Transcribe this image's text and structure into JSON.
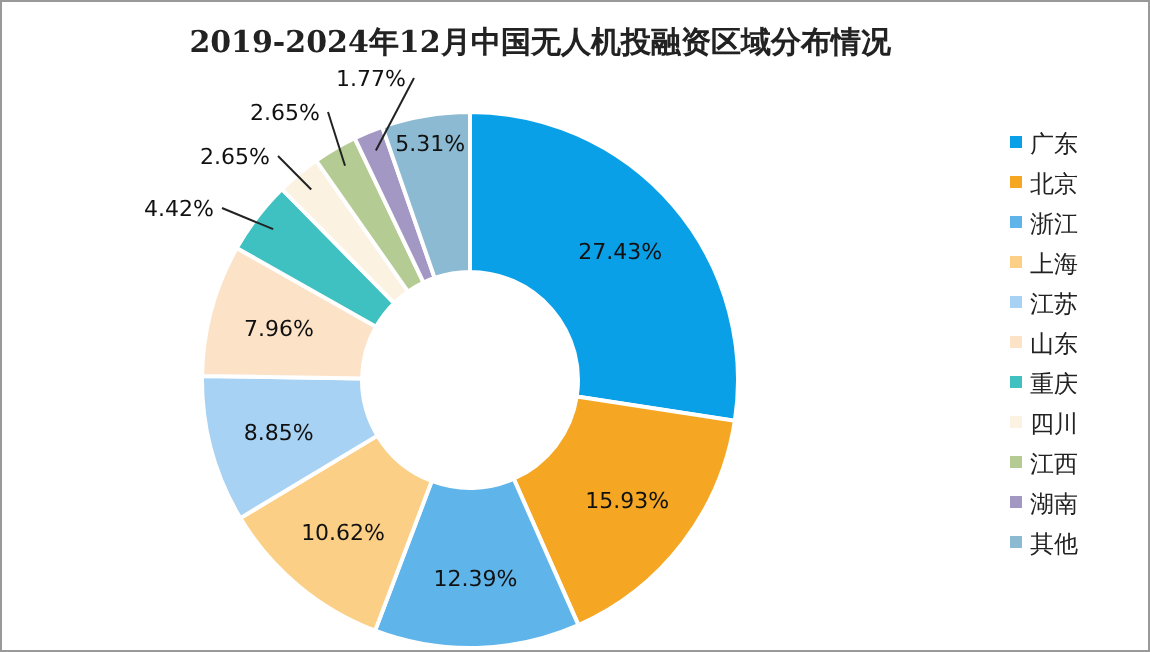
{
  "chart_data": {
    "type": "donut",
    "title": "2019-2024年12月中国无人机投融资区域分布情况",
    "categories": [
      "广东",
      "北京",
      "浙江",
      "上海",
      "江苏",
      "山东",
      "重庆",
      "四川",
      "江西",
      "湖南",
      "其他"
    ],
    "values": [
      27.43,
      15.93,
      12.39,
      10.62,
      8.85,
      7.96,
      4.42,
      2.65,
      2.65,
      1.77,
      5.31
    ],
    "colors": [
      "#0aa0e8",
      "#f5a623",
      "#5fb4ea",
      "#fbcf85",
      "#a8d2f3",
      "#fce3c8",
      "#3ec1c0",
      "#fcf2e2",
      "#b4cc94",
      "#a398c4",
      "#8cbad3"
    ],
    "value_labels": [
      "27.43%",
      "15.93%",
      "12.39%",
      "10.62%",
      "8.85%",
      "7.96%",
      "4.42%",
      "2.65%",
      "2.65%",
      "1.77%",
      "5.31%"
    ],
    "legend": "right"
  }
}
